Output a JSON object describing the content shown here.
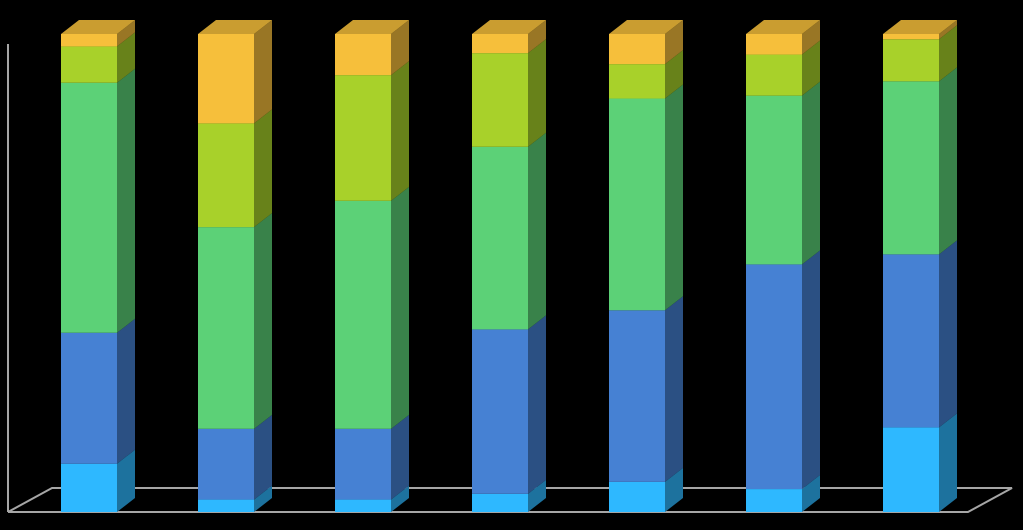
{
  "chart_data": {
    "type": "bar",
    "stacked": true,
    "normalized": true,
    "style": "3d-column",
    "background": "#000000",
    "axis_color": "#a6a6a6",
    "title": "",
    "xlabel": "",
    "ylabel": "",
    "ylim": [
      0,
      100
    ],
    "grid": false,
    "legend": "none",
    "categories": [
      "",
      "",
      "",
      "",
      "",
      "",
      ""
    ],
    "series": [
      {
        "color": "#2eb8ff",
        "values": [
          10.1,
          2.6,
          2.6,
          3.8,
          6.3,
          4.8,
          17.7
        ]
      },
      {
        "color": "#4681d3",
        "values": [
          27.4,
          14.8,
          14.8,
          34.4,
          35.9,
          47.0,
          36.2
        ]
      },
      {
        "color": "#5cd177",
        "values": [
          52.3,
          42.2,
          47.7,
          38.2,
          44.3,
          35.3,
          36.2
        ]
      },
      {
        "color": "#a8d12a",
        "values": [
          7.6,
          21.7,
          26.3,
          19.6,
          7.2,
          8.6,
          8.8
        ]
      },
      {
        "color": "#f6bf3b",
        "values": [
          2.6,
          18.7,
          8.6,
          4.0,
          6.3,
          4.3,
          1.1
        ]
      }
    ]
  }
}
